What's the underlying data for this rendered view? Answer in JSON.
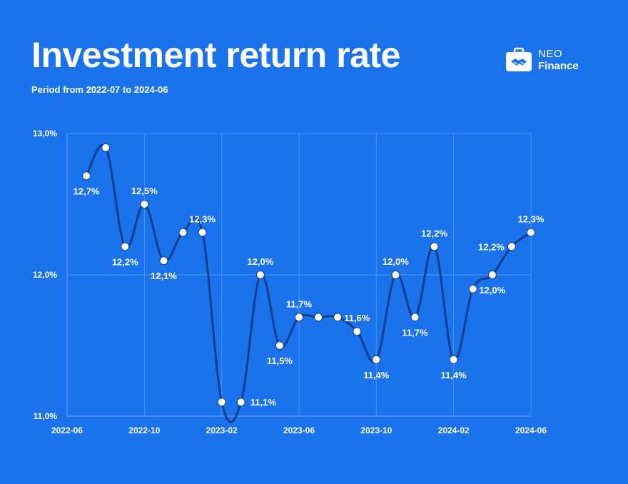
{
  "header": {
    "title": "Investment return rate",
    "subtitle": "Period from 2022-07 to 2024-06"
  },
  "brand": {
    "line1": "NEO",
    "line2": "Finance",
    "icon": "briefcase-handshake-icon"
  },
  "colors": {
    "background": "#1a73ec",
    "line": "#0e3f8c",
    "point": "#ffffff",
    "grid": "#4d94f2"
  },
  "chart_data": {
    "type": "line",
    "x_start": "2022-07",
    "x": [
      "2022-07",
      "2022-08",
      "2022-09",
      "2022-10",
      "2022-11",
      "2022-12",
      "2023-01",
      "2023-02",
      "2023-03",
      "2023-04",
      "2023-05",
      "2023-06",
      "2023-07",
      "2023-08",
      "2023-09",
      "2023-10",
      "2023-11",
      "2023-12",
      "2024-01",
      "2024-02",
      "2024-03",
      "2024-04",
      "2024-05",
      "2024-06"
    ],
    "series": [
      {
        "values": [
          12.7,
          12.9,
          12.2,
          12.5,
          12.1,
          12.3,
          12.3,
          11.1,
          11.1,
          12.0,
          11.5,
          11.7,
          11.7,
          11.7,
          11.6,
          11.4,
          12.0,
          11.7,
          12.2,
          11.4,
          11.9,
          12.0,
          12.2,
          12.3
        ]
      }
    ],
    "data_labels": [
      {
        "index": 0,
        "text": "12,7%",
        "pos": "below"
      },
      {
        "index": 2,
        "text": "12,2%",
        "pos": "below"
      },
      {
        "index": 3,
        "text": "12,5%",
        "pos": "above"
      },
      {
        "index": 4,
        "text": "12,1%",
        "pos": "below"
      },
      {
        "index": 6,
        "text": "12,3%",
        "pos": "above"
      },
      {
        "index": 8,
        "text": "11,1%",
        "pos": "right"
      },
      {
        "index": 9,
        "text": "12,0%",
        "pos": "above"
      },
      {
        "index": 10,
        "text": "11,5%",
        "pos": "below"
      },
      {
        "index": 11,
        "text": "11,7%",
        "pos": "above"
      },
      {
        "index": 14,
        "text": "11,6%",
        "pos": "above"
      },
      {
        "index": 15,
        "text": "11,4%",
        "pos": "below"
      },
      {
        "index": 16,
        "text": "12,0%",
        "pos": "above"
      },
      {
        "index": 17,
        "text": "11,7%",
        "pos": "below"
      },
      {
        "index": 18,
        "text": "12,2%",
        "pos": "above"
      },
      {
        "index": 19,
        "text": "11,4%",
        "pos": "below"
      },
      {
        "index": 21,
        "text": "12,0%",
        "pos": "below"
      },
      {
        "index": 22,
        "text": "12,2%",
        "pos": "left"
      },
      {
        "index": 23,
        "text": "12,3%",
        "pos": "above"
      }
    ],
    "x_tick_labels": [
      "2022-06",
      "2022-10",
      "2023-02",
      "2023-06",
      "2023-10",
      "2024-02",
      "2024-06"
    ],
    "y_tick_labels": [
      "11,0%",
      "12,0%",
      "13,0%"
    ],
    "ylim": [
      11.0,
      13.0
    ],
    "grid": true
  }
}
